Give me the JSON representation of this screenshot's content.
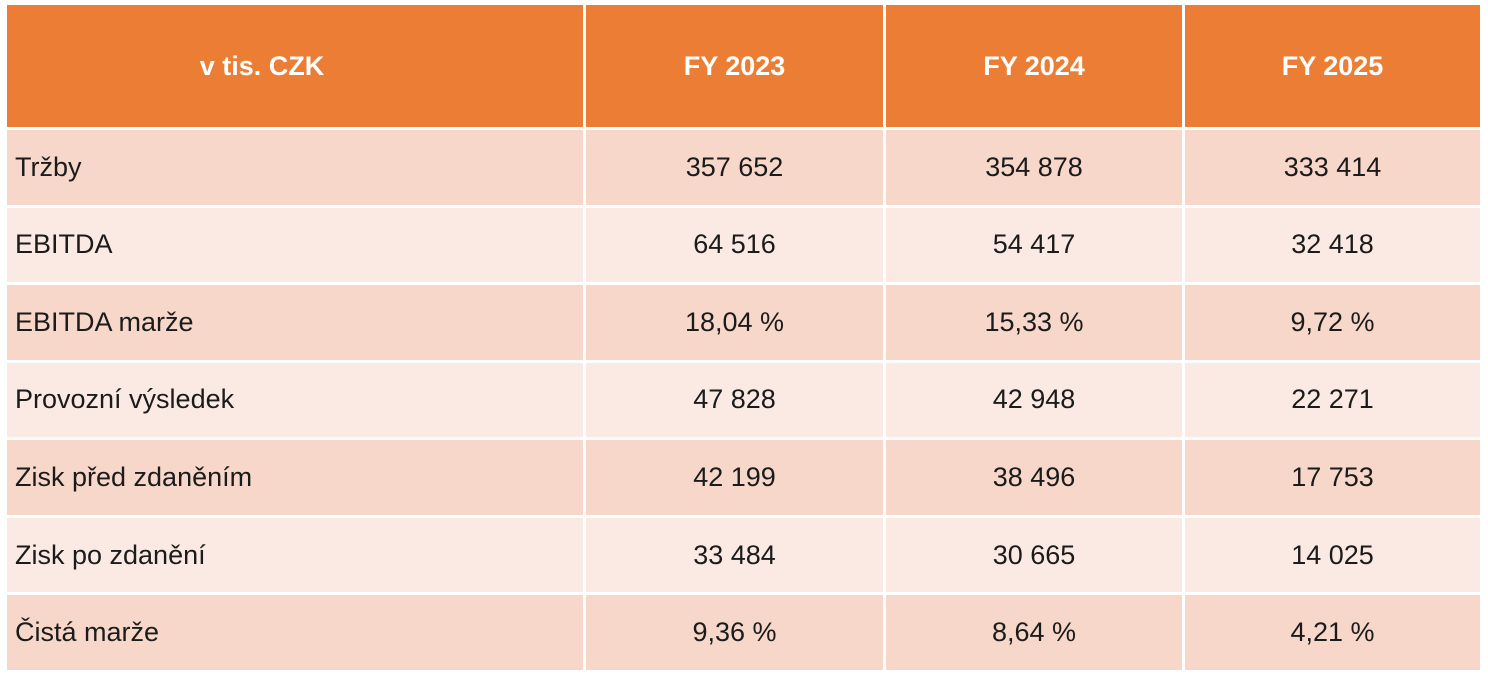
{
  "table": {
    "unit_label": "v tis. CZK",
    "columns": [
      "FY 2023",
      "FY 2024",
      "FY 2025"
    ],
    "rows": [
      {
        "label": "Tržby",
        "values": [
          "357 652",
          "354 878",
          "333 414"
        ]
      },
      {
        "label": "EBITDA",
        "values": [
          "64 516",
          "54 417",
          "32 418"
        ]
      },
      {
        "label": "EBITDA marže",
        "values": [
          "18,04 %",
          "15,33 %",
          "9,72 %"
        ]
      },
      {
        "label": "Provozní výsledek",
        "values": [
          "47 828",
          "42 948",
          "22 271"
        ]
      },
      {
        "label": "Zisk před zdaněním",
        "values": [
          "42 199",
          "38 496",
          "17 753"
        ]
      },
      {
        "label": "Zisk po zdanění",
        "values": [
          "33 484",
          "30 665",
          "14 025"
        ]
      },
      {
        "label": "Čistá marže",
        "values": [
          "9,36 %",
          "8,64 %",
          "4,21 %"
        ]
      }
    ]
  },
  "colors": {
    "header_bg": "#EB7E34",
    "band_dark": "#F7D7CA",
    "band_light": "#FBEAE3",
    "header_text": "#FFFFFF",
    "body_text": "#1B1B1B"
  },
  "chart_data": {
    "type": "table",
    "title": "v tis. CZK",
    "categories": [
      "FY 2023",
      "FY 2024",
      "FY 2025"
    ],
    "series": [
      {
        "name": "Tržby",
        "values": [
          357652,
          354878,
          333414
        ]
      },
      {
        "name": "EBITDA",
        "values": [
          64516,
          54417,
          32418
        ]
      },
      {
        "name": "EBITDA marže (%)",
        "values": [
          18.04,
          15.33,
          9.72
        ]
      },
      {
        "name": "Provozní výsledek",
        "values": [
          47828,
          42948,
          22271
        ]
      },
      {
        "name": "Zisk před zdaněním",
        "values": [
          42199,
          38496,
          17753
        ]
      },
      {
        "name": "Zisk po zdanění",
        "values": [
          33484,
          30665,
          14025
        ]
      },
      {
        "name": "Čistá marže (%)",
        "values": [
          9.36,
          8.64,
          4.21
        ]
      }
    ]
  }
}
